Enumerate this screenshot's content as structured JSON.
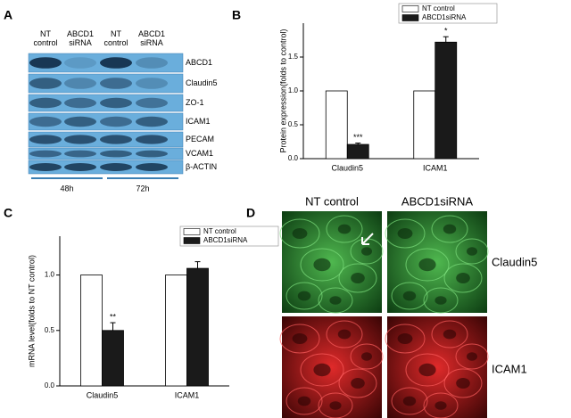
{
  "panel_labels": [
    "A",
    "B",
    "C",
    "D"
  ],
  "panel_a": {
    "columns": [
      "NT control",
      "ABCD1 siRNA",
      "NT control",
      "ABCD1 siRNA"
    ],
    "rows": [
      "ABCD1",
      "Claudin5",
      "ZO-1",
      "ICAM1",
      "PECAM",
      "VCAM1",
      "β-ACTIN"
    ],
    "times": [
      "48h",
      "72h"
    ]
  },
  "chart_data": [
    {
      "type": "bar",
      "ylabel": "Protein expression(folds to control)",
      "categories": [
        "Claudin5",
        "ICAM1"
      ],
      "series": [
        {
          "name": "NT control",
          "color": "#ffffff",
          "values": [
            1.0,
            1.0
          ],
          "errors": [
            null,
            null
          ],
          "annotations": [
            null,
            null
          ]
        },
        {
          "name": "ABCD1siRNA",
          "color": "#1a1a1a",
          "values": [
            0.21,
            1.72
          ],
          "errors": [
            0.02,
            0.08
          ],
          "annotations": [
            "***",
            "*"
          ]
        }
      ],
      "ylim": [
        0,
        2.0
      ],
      "yticks": [
        {
          "value": 0,
          "label": "0.0"
        },
        {
          "value": 0.5,
          "label": "0.5"
        },
        {
          "value": 1,
          "label": "1.0"
        },
        {
          "value": 1.5,
          "label": "1.5"
        }
      ],
      "legend": "top-right"
    },
    {
      "type": "bar",
      "ylabel": "mRNA level(folds to NT control)",
      "categories": [
        "Claudin5",
        "ICAM1"
      ],
      "series": [
        {
          "name": "NT control",
          "color": "#ffffff",
          "values": [
            1.0,
            1.0
          ],
          "errors": [
            null,
            null
          ],
          "annotations": [
            null,
            null
          ]
        },
        {
          "name": "ABCD1siRNA",
          "color": "#1a1a1a",
          "values": [
            0.5,
            1.06
          ],
          "errors": [
            0.07,
            0.06
          ],
          "annotations": [
            "**",
            null
          ]
        }
      ],
      "ylim": [
        0,
        1.35
      ],
      "yticks": [
        {
          "value": 0,
          "label": "0.0"
        },
        {
          "value": 0.5,
          "label": "0.5"
        },
        {
          "value": 1,
          "label": "1.0"
        }
      ],
      "legend": "top-right"
    }
  ],
  "panel_d": {
    "columns": [
      "NT control",
      "ABCD1siRNA"
    ],
    "rows": [
      "Claudin5",
      "ICAM1"
    ]
  }
}
